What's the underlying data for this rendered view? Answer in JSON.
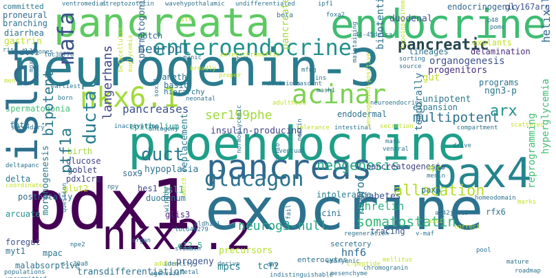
{
  "words": [
    {
      "text": "neurogenin-3",
      "color": "#2a7c8e"
    },
    {
      "text": "proendocrine",
      "color": "#1f9e89"
    },
    {
      "text": "exocrine",
      "color": "#2c728e"
    },
    {
      "text": "pancreata",
      "color": "#5ec962"
    },
    {
      "text": "endocrine",
      "color": "#3fbc73"
    },
    {
      "text": "pdx1",
      "color": "#440154"
    },
    {
      "text": "pancreas",
      "color": "#31688e"
    },
    {
      "text": "islet",
      "color": "#2d708e"
    },
    {
      "text": "pax4",
      "color": "#25848e"
    },
    {
      "text": "nkx2.2",
      "color": "#440154"
    },
    {
      "text": "nkx6.1",
      "color": "#a0da39"
    },
    {
      "text": "enteroendocrine",
      "color": "#21918c"
    },
    {
      "text": "acinar",
      "color": "#7ad151"
    },
    {
      "text": "glucagon",
      "color": "#2c728e"
    },
    {
      "text": "pancreatic",
      "color": "#25474e"
    },
    {
      "text": "mafa",
      "color": "#3b528b"
    },
    {
      "text": "neurod1",
      "color": "#2c728e"
    },
    {
      "text": "ptf1a",
      "color": "#2a788e"
    },
    {
      "text": "ductal",
      "color": "#287d8e"
    },
    {
      "text": "duct",
      "color": "#2a788e"
    },
    {
      "text": "pancreases",
      "color": "#3b528b"
    },
    {
      "text": "ser199phe",
      "color": "#a0da39"
    },
    {
      "text": "neogenesis",
      "color": "#22a884"
    },
    {
      "text": "somatostatin",
      "color": "#35b779"
    },
    {
      "text": "allocation",
      "color": "#b5de2b"
    },
    {
      "text": "multipotent",
      "color": "#2c728e"
    },
    {
      "text": "arx",
      "color": "#21918c"
    },
    {
      "text": "neurog3-null",
      "color": "#22a884"
    },
    {
      "text": "bipotent",
      "color": "#2a788e"
    },
    {
      "text": "langerhans",
      "color": "#414487"
    },
    {
      "text": "insulin-producing",
      "color": "#414487"
    },
    {
      "text": "notch",
      "color": "#31688e"
    },
    {
      "text": "endodermal",
      "color": "#2d708e"
    },
    {
      "text": "epithelium",
      "color": "#21918c"
    },
    {
      "text": "hypoplasia",
      "color": "#2c728e"
    },
    {
      "text": "glis3",
      "color": "#482878"
    },
    {
      "text": "hnf6",
      "color": "#31688e"
    },
    {
      "text": "mpcs",
      "color": "#26828e"
    },
    {
      "text": "tcf2",
      "color": "#2a788e"
    },
    {
      "text": "progeny",
      "color": "#3b528b"
    },
    {
      "text": "transdifferentiation",
      "color": "#2c728e"
    },
    {
      "text": "malabsorptive",
      "color": "#2c728e"
    },
    {
      "text": "ghrelin",
      "color": "#2ab07f"
    },
    {
      "text": "diabetes",
      "color": "#3b528b"
    },
    {
      "text": "neurod",
      "color": "#2a788e"
    },
    {
      "text": "pancreatogenesis",
      "color": "#414487"
    },
    {
      "text": "duodenal",
      "color": "#3b528b"
    },
    {
      "text": "endocrinogenic",
      "color": "#31688e"
    },
    {
      "text": "gly167arg",
      "color": "#3b528b"
    },
    {
      "text": "organogenesis",
      "color": "#3b528b"
    },
    {
      "text": "progenitors",
      "color": "#472d7b"
    },
    {
      "text": "lineages",
      "color": "#2d708e"
    },
    {
      "text": "delamination",
      "color": "#482878"
    },
    {
      "text": "ngn3-p",
      "color": "#2a788e"
    },
    {
      "text": "unipotent",
      "color": "#2a788e"
    },
    {
      "text": "expansion",
      "color": "#2a788e"
    },
    {
      "text": "programs",
      "color": "#2c728e"
    },
    {
      "text": "gut",
      "color": "#c0df25"
    },
    {
      "text": "helix-loop-helix",
      "color": "#31688e"
    },
    {
      "text": "hyperglycemia",
      "color": "#3fbc73"
    },
    {
      "text": "reprogramming",
      "color": "#3fbc73"
    },
    {
      "text": "sox9",
      "color": "#31688e"
    },
    {
      "text": "isl1",
      "color": "#2ab07f"
    },
    {
      "text": "pax6",
      "color": "#2c728e"
    },
    {
      "text": "acini",
      "color": "#2c728e"
    },
    {
      "text": "intolerance",
      "color": "#287d8e"
    },
    {
      "text": "tracing",
      "color": "#3b528b"
    },
    {
      "text": "precursors",
      "color": "#b5de2b"
    },
    {
      "text": "replacement",
      "color": "#2a788e"
    },
    {
      "text": "duodenum",
      "color": "#2a788e"
    },
    {
      "text": "glucose",
      "color": "#414487"
    },
    {
      "text": "goblet",
      "color": "#414487"
    },
    {
      "text": "pdx1cre",
      "color": "#414487"
    },
    {
      "text": "postnatally",
      "color": "#31688e"
    },
    {
      "text": "arcuate",
      "color": "#21918c"
    },
    {
      "text": "foregut",
      "color": "#3b528b"
    },
    {
      "text": "myt1",
      "color": "#2c728e"
    },
    {
      "text": "mpac",
      "color": "#2c728e"
    },
    {
      "text": "delta",
      "color": "#2a788e"
    },
    {
      "text": "glut2",
      "color": "#c0df25"
    },
    {
      "text": "hes1",
      "color": "#414487"
    },
    {
      "text": "birth",
      "color": "#a0da39"
    },
    {
      "text": "fate",
      "color": "#2a788e"
    },
    {
      "text": "morphogenesis",
      "color": "#2a788e"
    },
    {
      "text": "spermatogonial",
      "color": "#31688e"
    },
    {
      "text": "spermatogonia",
      "color": "#3fbc73"
    },
    {
      "text": "gastrin",
      "color": "#c0df25"
    },
    {
      "text": "diarrhea",
      "color": "#2c728e"
    },
    {
      "text": "proneural",
      "color": "#31688e"
    },
    {
      "text": "branching",
      "color": "#2c728e"
    },
    {
      "text": "dll1",
      "color": "#2a788e"
    },
    {
      "text": "paneth",
      "color": "#2c728e"
    },
    {
      "text": "basic",
      "color": "#2c728e"
    },
    {
      "text": "hierarchy",
      "color": "#2c728e"
    },
    {
      "text": "mpc",
      "color": "#a0da39"
    },
    {
      "text": "temporally",
      "color": "#2c728e"
    },
    {
      "text": "bipotential",
      "color": "#2c728e"
    },
    {
      "text": "pancreatectomy",
      "color": "#a0da39"
    },
    {
      "text": "explants",
      "color": "#c0df25"
    },
    {
      "text": "e12.5",
      "color": "#2ab07f"
    },
    {
      "text": "enterocytes",
      "color": "#2c728e"
    },
    {
      "text": "secretory",
      "color": "#2c728e"
    },
    {
      "text": "committed",
      "color": "#2a788e"
    },
    {
      "text": "ventromedial",
      "color": "#2c728e"
    },
    {
      "text": "streptozotocin",
      "color": "#2c728e"
    },
    {
      "text": "wavehypothalamic",
      "color": "#2c728e"
    },
    {
      "text": "undifferentiated",
      "color": "#2c728e"
    },
    {
      "text": "ipf1",
      "color": "#2c728e"
    },
    {
      "text": "beta",
      "color": "#2c728e"
    },
    {
      "text": "foxa2",
      "color": "#2c728e"
    },
    {
      "text": "p48",
      "color": "#2c728e"
    },
    {
      "text": "pomc",
      "color": "#2c728e"
    },
    {
      "text": "44-45delca",
      "color": "#2c728e"
    },
    {
      "text": "stc",
      "color": "#c0df25"
    },
    {
      "text": "hormones",
      "color": "#2c728e"
    },
    {
      "text": "rise",
      "color": "#2c728e"
    },
    {
      "text": "loc38776",
      "color": "#2c728e"
    },
    {
      "text": "menl",
      "color": "#c0df25"
    },
    {
      "text": "earliest",
      "color": "#2c728e"
    },
    {
      "text": "born",
      "color": "#2c728e"
    },
    {
      "text": "manic",
      "color": "#2c728e"
    },
    {
      "text": "bud",
      "color": "#2c728e"
    },
    {
      "text": "enterochromaffin",
      "color": "#c0df25"
    },
    {
      "text": "broadly",
      "color": "#c0df25"
    },
    {
      "text": "proper",
      "color": "#c0df25"
    },
    {
      "text": "neonatal",
      "color": "#2c728e"
    },
    {
      "text": "adulthood",
      "color": "#c0df25"
    },
    {
      "text": "decisions",
      "color": "#2c728e"
    },
    {
      "text": "nascent",
      "color": "#2c728e"
    },
    {
      "text": "mash1",
      "color": "#2c728e"
    },
    {
      "text": "mfng",
      "color": "#2c728e"
    },
    {
      "text": "ins",
      "color": "#2c728e"
    },
    {
      "text": "sorting",
      "color": "#2c728e"
    },
    {
      "text": "source",
      "color": "#2c728e"
    },
    {
      "text": "neuroendocrine",
      "color": "#2c728e"
    },
    {
      "text": "ontogeny",
      "color": "#2c728e"
    },
    {
      "text": "inactivation",
      "color": "#2c728e"
    },
    {
      "text": "tolerance",
      "color": "#c0df25"
    },
    {
      "text": "intestinal",
      "color": "#2c728e"
    },
    {
      "text": "secretion",
      "color": "#c0df25"
    },
    {
      "text": "compartment",
      "color": "#2c728e"
    },
    {
      "text": "scattered",
      "color": "#c0df25"
    },
    {
      "text": "secondary",
      "color": "#2c728e"
    },
    {
      "text": "deltapanc",
      "color": "#2c728e"
    },
    {
      "text": "coordinate",
      "color": "#c0df25"
    },
    {
      "text": "mass",
      "color": "#2c728e"
    },
    {
      "text": "ventral",
      "color": "#2c728e"
    },
    {
      "text": "eventual",
      "color": "#2c728e"
    },
    {
      "text": "drive",
      "color": "#2c728e"
    },
    {
      "text": "menin",
      "color": "#2c728e"
    },
    {
      "text": "homeodomain",
      "color": "#2c728e"
    },
    {
      "text": "ar42j-b13",
      "color": "#2c728e"
    },
    {
      "text": "assi",
      "color": "#c0df25"
    },
    {
      "text": "correct",
      "color": "#c0df25"
    },
    {
      "text": "marks",
      "color": "#c0df25"
    },
    {
      "text": "rfx6",
      "color": "#2c728e"
    },
    {
      "text": "pool",
      "color": "#2c728e"
    },
    {
      "text": "mature",
      "color": "#2c728e"
    },
    {
      "text": "roadmap",
      "color": "#2c728e"
    },
    {
      "text": "regeneration",
      "color": "#2c728e"
    },
    {
      "text": "v-maf",
      "color": "#2c728e"
    },
    {
      "text": "embryonic",
      "color": "#2c728e"
    },
    {
      "text": "mellitus",
      "color": "#c0df25"
    },
    {
      "text": "chromogranin",
      "color": "#2c728e"
    },
    {
      "text": "c-peptide",
      "color": "#c0df25"
    },
    {
      "text": "mesenchyme",
      "color": "#2c728e"
    },
    {
      "text": "indistinguishable",
      "color": "#2c728e"
    },
    {
      "text": "fail",
      "color": "#2c728e"
    },
    {
      "text": "day",
      "color": "#2c728e"
    },
    {
      "text": "derive",
      "color": "#2c728e"
    },
    {
      "text": "fetal",
      "color": "#2c728e"
    },
    {
      "text": "agenesis",
      "color": "#2c728e"
    },
    {
      "text": "adults",
      "color": "#c0df25"
    },
    {
      "text": "identity",
      "color": "#2c728e"
    },
    {
      "text": "stomach",
      "color": "#2c728e"
    },
    {
      "text": "organ",
      "color": "#2c728e"
    },
    {
      "text": "window",
      "color": "#2c728e"
    },
    {
      "text": "npy",
      "color": "#2c728e"
    },
    {
      "text": "npe2",
      "color": "#2c728e"
    },
    {
      "text": "slc30a8",
      "color": "#2c728e"
    },
    {
      "text": "populations",
      "color": "#2c728e"
    },
    {
      "text": "uncommitted",
      "color": "#2c728e"
    },
    {
      "text": "aldh1b1",
      "color": "#2c728e"
    },
    {
      "text": "loc646279",
      "color": "#2c728e"
    },
    {
      "text": "abcc8",
      "color": "#c0df25"
    },
    {
      "text": "hnf1b",
      "color": "#2c728e"
    },
    {
      "text": "normoglycemic",
      "color": "#2c728e"
    },
    {
      "text": "sox17",
      "color": "#2c728e"
    },
    {
      "text": "euglycemia",
      "color": "#c0df25"
    },
    {
      "text": "mnx1",
      "color": "#2c728e"
    },
    {
      "text": "betacellulin",
      "color": "#c0df25"
    },
    {
      "text": "question",
      "color": "#2c728e"
    },
    {
      "text": "maintaining",
      "color": "#2c728e"
    },
    {
      "text": "hypoinsulinemia",
      "color": "#c0df25"
    },
    {
      "text": "nestin",
      "color": "#2c728e"
    },
    {
      "text": "neurogenin3-positive",
      "color": "#c0df25"
    },
    {
      "text": "lmx1b",
      "color": "#2c728e"
    }
  ]
}
